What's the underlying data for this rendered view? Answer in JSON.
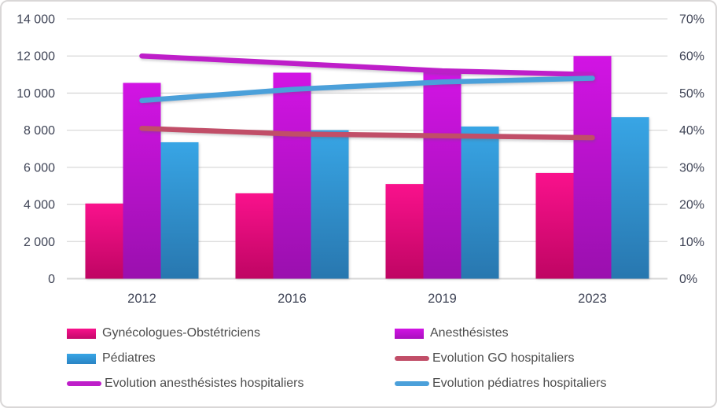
{
  "chart_data": {
    "type": "combo_bar_line",
    "title": "",
    "categories": [
      "2012",
      "2016",
      "2019",
      "2023"
    ],
    "left_axis": {
      "min": 0,
      "max": 14000,
      "tick_labels": [
        "0",
        "2 000",
        "4 000",
        "6 000",
        "8 000",
        "10 000",
        "12 000",
        "14 000"
      ]
    },
    "right_axis": {
      "min": 0,
      "max": 70,
      "tick_labels": [
        "0%",
        "10%",
        "20%",
        "30%",
        "40%",
        "50%",
        "60%",
        "70%"
      ]
    },
    "grid": true,
    "legend_position": "bottom-two-columns",
    "bar_series": [
      {
        "name": "Gynécologues-Obstétriciens",
        "axis": "left",
        "values": [
          4050,
          4600,
          5100,
          5700
        ],
        "color_top": "#f9118c",
        "color_bottom": "#bf0563"
      },
      {
        "name": "Anesthésistes",
        "axis": "left",
        "values": [
          10550,
          11100,
          11150,
          12000
        ],
        "color_top": "#d214e4",
        "color_bottom": "#9a10ae"
      },
      {
        "name": "Pédiatres",
        "axis": "left",
        "values": [
          7350,
          8000,
          8200,
          8700
        ],
        "color_top": "#38a5e5",
        "color_bottom": "#2877af"
      }
    ],
    "line_series": [
      {
        "name": "Evolution GO hospitaliers",
        "axis": "right",
        "values_pct": [
          40.5,
          39,
          38.5,
          38
        ],
        "color": "#c14e68"
      },
      {
        "name": "Evolution anesthésistes hospitaliers",
        "axis": "right",
        "values_pct": [
          60,
          58,
          56,
          55
        ],
        "color": "#be1ec9"
      },
      {
        "name": "Evolution pédiatres hospitaliers",
        "axis": "right",
        "values_pct": [
          48,
          51,
          53,
          54
        ],
        "color": "#4ba0da"
      }
    ],
    "legend": [
      {
        "label": "Gynécologues-Obstétriciens",
        "swatch": "bar",
        "color_top": "#f9118c",
        "color_bottom": "#c4096a"
      },
      {
        "label": "Anesthésistes",
        "swatch": "bar",
        "color_top": "#d214e4",
        "color_bottom": "#a810bd"
      },
      {
        "label": "Pédiatres",
        "swatch": "bar",
        "color_top": "#38a5e5",
        "color_bottom": "#2a84c4"
      },
      {
        "label": "Evolution GO hospitaliers",
        "swatch": "line",
        "color": "#c14e68"
      },
      {
        "label": "Evolution anesthésistes hospitaliers",
        "swatch": "line",
        "color": "#be1ec9"
      },
      {
        "label": "Evolution pédiatres hospitaliers",
        "swatch": "line",
        "color": "#4ba0da"
      }
    ]
  },
  "styles": {
    "grid_color": "#d9d9d9",
    "axis_line_color": "#d6d6d6",
    "axis_text_color": "#3f4456",
    "legend_text_color": "#4c4c4c",
    "frame_border_color": "#d9d7d7",
    "background": "#ffffff"
  }
}
